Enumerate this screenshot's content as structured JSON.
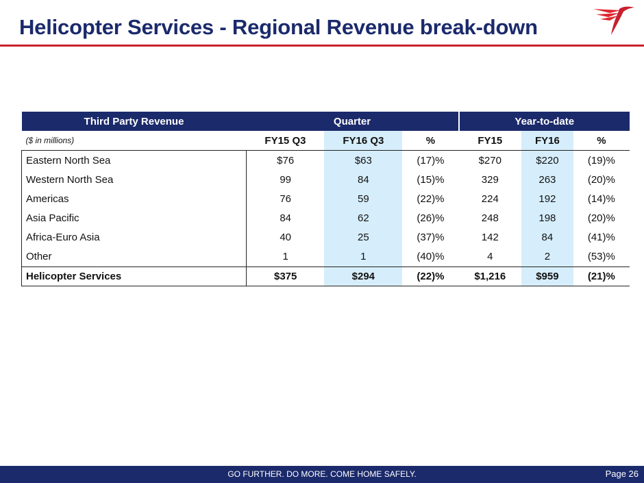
{
  "title": "Helicopter Services - Regional Revenue break-down",
  "logo": {
    "icon": "hummingbird-logo-icon",
    "colors": [
      "#e0262f",
      "#c8202e"
    ]
  },
  "colors": {
    "navy": "#1b2a6b",
    "accent_red": "#c8202e",
    "highlight": "#d6eefb"
  },
  "table": {
    "header": {
      "label": "Third Party Revenue",
      "quarter": "Quarter",
      "ytd": "Year-to-date"
    },
    "units": "($ in millions)",
    "columns": [
      "FY15 Q3",
      "FY16 Q3",
      "%",
      "FY15",
      "FY16",
      "%"
    ],
    "rows": [
      {
        "name": "Eastern North Sea",
        "values": [
          "$76",
          "$63",
          "(17)%",
          "$270",
          "$220",
          "(19)%"
        ]
      },
      {
        "name": "Western North Sea",
        "values": [
          "99",
          "84",
          "(15)%",
          "329",
          "263",
          "(20)%"
        ]
      },
      {
        "name": "Americas",
        "values": [
          "76",
          "59",
          "(22)%",
          "224",
          "192",
          "(14)%"
        ]
      },
      {
        "name": "Asia Pacific",
        "values": [
          "84",
          "62",
          "(26)%",
          "248",
          "198",
          "(20)%"
        ]
      },
      {
        "name": "Africa-Euro Asia",
        "values": [
          "40",
          "25",
          "(37)%",
          "142",
          "84",
          "(41)%"
        ]
      },
      {
        "name": "Other",
        "values": [
          "1",
          "1",
          "(40)%",
          "4",
          "2",
          "(53)%"
        ]
      }
    ],
    "total": {
      "name": "Helicopter Services",
      "values": [
        "$375",
        "$294",
        "(22)%",
        "$1,216",
        "$959",
        "(21)%"
      ]
    }
  },
  "footer": {
    "tagline": "GO FURTHER. DO MORE. COME HOME SAFELY.",
    "page": "Page 26"
  }
}
